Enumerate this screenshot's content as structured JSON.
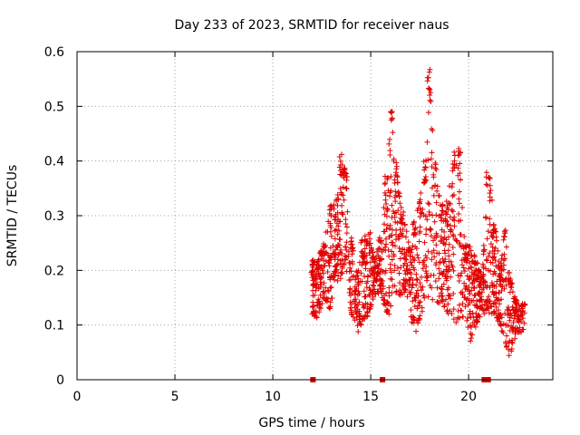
{
  "chart_data": {
    "type": "scatter",
    "title": "Day 233 of 2023, SRMTID for receiver naus",
    "xlabel": "GPS time / hours",
    "ylabel": "SRMTID / TECUs",
    "xlim": [
      0,
      24.3
    ],
    "ylim": [
      0,
      0.6
    ],
    "xticks": [
      0,
      5,
      10,
      15,
      20
    ],
    "xtick_labels": [
      "0",
      "5",
      "10",
      "15",
      "20"
    ],
    "yticks": [
      0,
      0.1,
      0.2,
      0.3,
      0.4,
      0.5,
      0.6
    ],
    "ytick_labels": [
      "0",
      "0.1",
      "0.2",
      "0.3",
      "0.4",
      "0.5",
      "0.6"
    ],
    "grid": true,
    "marker": "plus",
    "color": "#e00000",
    "zero_markers_x": [
      12.05,
      15.6,
      20.8,
      20.95,
      21.0
    ],
    "envelope": [
      [
        12.0,
        0.12,
        0.22
      ],
      [
        12.3,
        0.11,
        0.22
      ],
      [
        12.6,
        0.15,
        0.26
      ],
      [
        12.9,
        0.12,
        0.32
      ],
      [
        13.2,
        0.18,
        0.33
      ],
      [
        13.5,
        0.18,
        0.42
      ],
      [
        13.7,
        0.22,
        0.4
      ],
      [
        14.0,
        0.12,
        0.26
      ],
      [
        14.3,
        0.08,
        0.2
      ],
      [
        14.6,
        0.1,
        0.26
      ],
      [
        14.9,
        0.12,
        0.27
      ],
      [
        15.2,
        0.15,
        0.22
      ],
      [
        15.5,
        0.16,
        0.26
      ],
      [
        15.8,
        0.12,
        0.38
      ],
      [
        16.0,
        0.12,
        0.5
      ],
      [
        16.3,
        0.16,
        0.4
      ],
      [
        16.6,
        0.15,
        0.32
      ],
      [
        16.9,
        0.15,
        0.26
      ],
      [
        17.2,
        0.08,
        0.29
      ],
      [
        17.5,
        0.1,
        0.33
      ],
      [
        17.8,
        0.15,
        0.4
      ],
      [
        18.0,
        0.15,
        0.57
      ],
      [
        18.3,
        0.14,
        0.4
      ],
      [
        18.6,
        0.14,
        0.32
      ],
      [
        18.9,
        0.12,
        0.33
      ],
      [
        19.2,
        0.11,
        0.42
      ],
      [
        19.5,
        0.1,
        0.43
      ],
      [
        19.8,
        0.12,
        0.25
      ],
      [
        20.1,
        0.07,
        0.25
      ],
      [
        20.4,
        0.1,
        0.22
      ],
      [
        20.7,
        0.12,
        0.2
      ],
      [
        21.0,
        0.12,
        0.39
      ],
      [
        21.3,
        0.12,
        0.3
      ],
      [
        21.6,
        0.1,
        0.22
      ],
      [
        21.9,
        0.06,
        0.28
      ],
      [
        22.1,
        0.04,
        0.2
      ],
      [
        22.4,
        0.08,
        0.15
      ],
      [
        22.8,
        0.09,
        0.14
      ]
    ]
  }
}
